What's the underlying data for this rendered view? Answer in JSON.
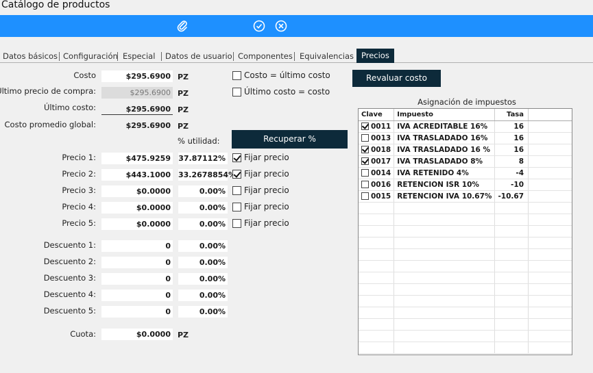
{
  "window": {
    "title": "Catálogo de productos"
  },
  "toolbar": {
    "icons": [
      "paperclip-icon",
      "check-circle-icon",
      "close-circle-icon"
    ],
    "color": "#1e90ff"
  },
  "tabs": [
    "Datos básicos",
    "Configuración",
    "Especial",
    "Datos de usuario",
    "Componentes",
    "Equivalencias",
    "Precios"
  ],
  "active_tab": "Precios",
  "costs": {
    "costo_label": "Costo",
    "costo_value": "$295.6900",
    "ultimo_precio_label": "Último precio de compra:",
    "ultimo_precio_value": "$295.6900",
    "ultimo_costo_label": "Último costo:",
    "ultimo_costo_value": "$295.6900",
    "promedio_label": "Costo promedio global:",
    "promedio_value": "$295.6900",
    "unit": "PZ"
  },
  "options": {
    "costo_ultimo": "Costo = último costo",
    "ultimo_costo": "Último costo = costo",
    "revaluar": "Revaluar costo",
    "recuperar": "Recuperar %",
    "utilidad_label": "% utilidad:"
  },
  "prices": [
    {
      "label": "Precio 1:",
      "value": "$475.9259",
      "pct": "37.87112%",
      "fijar": "Fijar precio",
      "checked": true
    },
    {
      "label": "Precio 2:",
      "value": "$443.1000",
      "pct": "33.2678854%",
      "fijar": "Fijar precio",
      "checked": true
    },
    {
      "label": "Precio 3:",
      "value": "$0.0000",
      "pct": "0.00%",
      "fijar": "Fijar precio",
      "checked": false
    },
    {
      "label": "Precio 4:",
      "value": "$0.0000",
      "pct": "0.00%",
      "fijar": "Fijar precio",
      "checked": false
    },
    {
      "label": "Precio 5:",
      "value": "$0.0000",
      "pct": "0.00%",
      "fijar": "Fijar precio",
      "checked": false
    }
  ],
  "discounts": [
    {
      "label": "Descuento 1:",
      "value": "0",
      "pct": "0.00%"
    },
    {
      "label": "Descuento 2:",
      "value": "0",
      "pct": "0.00%"
    },
    {
      "label": "Descuento 3:",
      "value": "0",
      "pct": "0.00%"
    },
    {
      "label": "Descuento 4:",
      "value": "0",
      "pct": "0.00%"
    },
    {
      "label": "Descuento 5:",
      "value": "0",
      "pct": "0.00%"
    }
  ],
  "cuota": {
    "label": "Cuota:",
    "value": "$0.0000",
    "unit": "PZ"
  },
  "taxes": {
    "title": "Asignación de impuestos",
    "headers": [
      "Clave",
      "Impuesto",
      "Tasa"
    ],
    "rows": [
      {
        "checked": true,
        "clave": "0011",
        "impuesto": "IVA ACREDITABLE 16%",
        "tasa": "16"
      },
      {
        "checked": false,
        "clave": "0013",
        "impuesto": "IVA TRASLADADO 16%",
        "tasa": "16"
      },
      {
        "checked": true,
        "clave": "0018",
        "impuesto": "IVA TRASLADADO 16 %",
        "tasa": "16"
      },
      {
        "checked": true,
        "clave": "0017",
        "impuesto": "IVA TRASLADADO 8%",
        "tasa": "8"
      },
      {
        "checked": false,
        "clave": "0014",
        "impuesto": "IVA RETENIDO 4%",
        "tasa": "-4"
      },
      {
        "checked": false,
        "clave": "0016",
        "impuesto": "RETENCION ISR 10%",
        "tasa": "-10"
      },
      {
        "checked": false,
        "clave": "0015",
        "impuesto": "RETENCION IVA 10.67%",
        "tasa": "-10.67"
      }
    ],
    "empty_rows": 13
  }
}
